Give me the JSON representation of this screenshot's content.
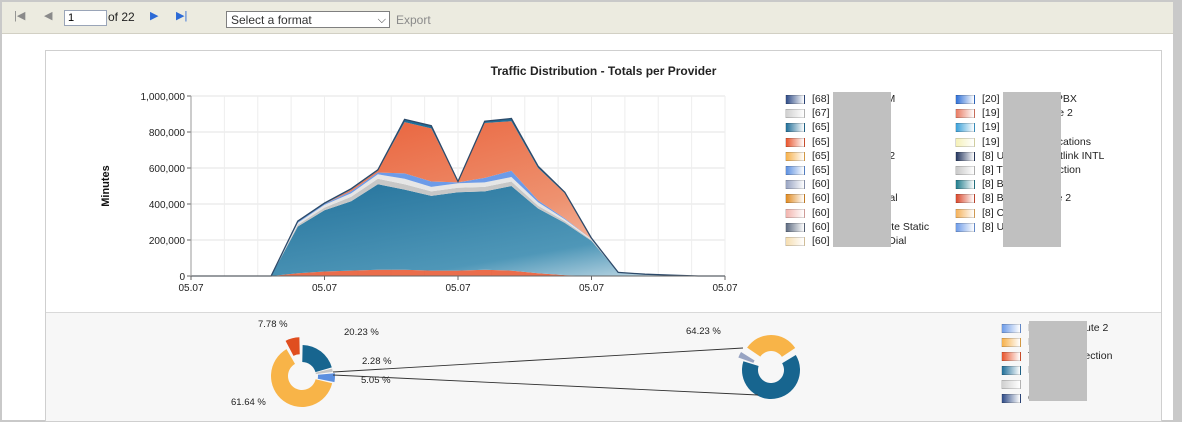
{
  "toolbar": {
    "first_icon": "first-page-icon",
    "prev_icon": "previous-page-icon",
    "page_value": "1",
    "of_label": "of 22",
    "next_icon": "next-page-icon",
    "last_icon": "last-page-icon",
    "format_placeholder": "Select a format",
    "export_label": "Export"
  },
  "chart": {
    "title": "Traffic Distribution - Totals per Provider"
  },
  "chart_data": [
    {
      "type": "area",
      "title": "Traffic Distribution - Totals per Provider",
      "ylabel": "Minutes",
      "xlabel": "",
      "x_tick_labels": [
        "05.07",
        "05.07",
        "05.07",
        "05.07",
        "05.07"
      ],
      "y_ticks": [
        "0",
        "200,000",
        "400,000",
        "600,000",
        "800,000",
        "1,000,000"
      ],
      "ylim": [
        0,
        1000000
      ],
      "grid": true,
      "stacked": true,
      "series": [
        {
          "values": [
            0,
            0,
            0,
            0,
            15000,
            25000,
            30000,
            35000,
            35000,
            30000,
            30000,
            35000,
            30000,
            15000,
            5000,
            0,
            0,
            0,
            0,
            0,
            0
          ]
        },
        {
          "values": [
            0,
            0,
            0,
            0,
            260000,
            340000,
            385000,
            475000,
            445000,
            415000,
            435000,
            435000,
            470000,
            360000,
            290000,
            195000,
            20000,
            10000,
            5000,
            0,
            0
          ]
        },
        {
          "values": [
            0,
            0,
            0,
            0,
            10000,
            15000,
            25000,
            30000,
            30000,
            25000,
            25000,
            25000,
            25000,
            15000,
            10000,
            5000,
            0,
            0,
            0,
            0,
            0
          ]
        },
        {
          "values": [
            0,
            0,
            0,
            0,
            10000,
            15000,
            20000,
            25000,
            30000,
            25000,
            25000,
            25000,
            25000,
            20000,
            10000,
            5000,
            0,
            0,
            0,
            0,
            0
          ]
        },
        {
          "values": [
            0,
            0,
            0,
            0,
            5000,
            5000,
            10000,
            10000,
            30000,
            30000,
            5000,
            25000,
            35000,
            10000,
            5000,
            0,
            0,
            0,
            0,
            0,
            0
          ]
        },
        {
          "values": [
            0,
            0,
            0,
            0,
            0,
            0,
            10000,
            10000,
            285000,
            295000,
            5000,
            305000,
            275000,
            180000,
            140000,
            5000,
            0,
            0,
            0,
            0,
            0
          ]
        },
        {
          "values": [
            0,
            0,
            0,
            0,
            5000,
            5000,
            5000,
            5000,
            15000,
            15000,
            0,
            10000,
            15000,
            10000,
            5000,
            0,
            0,
            0,
            0,
            0,
            0
          ]
        }
      ]
    },
    {
      "type": "pie",
      "slices": [
        {
          "label": "20.23 %",
          "value": 20.23
        },
        {
          "label": "2.28 %",
          "value": 2.28
        },
        {
          "label": "5.05 %",
          "value": 5.05
        },
        {
          "label": "61.64 %",
          "value": 61.64
        },
        {
          "label": "7.78 %",
          "value": 7.78
        }
      ]
    },
    {
      "type": "pie",
      "slices": [
        {
          "label": "64.23 %",
          "value": 64.23
        },
        {
          "label": "",
          "value": 4.0
        },
        {
          "label": "",
          "value": 31.77
        }
      ]
    }
  ],
  "legend_left": [
    {
      "text": "[68]",
      "tail": "VM",
      "color": "#2d4a86"
    },
    {
      "text": "[67]",
      "tail": "",
      "color": "#d0d0d0"
    },
    {
      "text": "[65]",
      "tail": "",
      "color": "#1f6e98"
    },
    {
      "text": "[65]",
      "tail": "",
      "color": "#e8542c"
    },
    {
      "text": "[65]",
      "tail": "P 2",
      "color": "#f6b04a"
    },
    {
      "text": "[65]",
      "tail": "P",
      "color": "#5b8fe0"
    },
    {
      "text": "[60]",
      "tail": "a",
      "color": "#97a3c2"
    },
    {
      "text": "[60]",
      "tail": "Dial",
      "color": "#e08a20"
    },
    {
      "text": "[60]",
      "tail": "R",
      "color": "#f2b4ae"
    },
    {
      "text": "[60]",
      "tail": "oute Static",
      "color": "#5c6a80"
    },
    {
      "text": "[60]",
      "tail": "o Dial",
      "color": "#f5ddb0"
    }
  ],
  "legend_right": [
    {
      "text": "[20]",
      "tail": "- PBX",
      "color": "#2e6fd6"
    },
    {
      "text": "[19]",
      "tail": "ute 2",
      "color": "#e87a62"
    },
    {
      "text": "[19]",
      "tail": "",
      "color": "#3aa0d8"
    },
    {
      "text": "[19]",
      "tail": "nications",
      "color": "#f5f1b8"
    },
    {
      "text": "[8] U",
      "tail": "htlink INTL",
      "color": "#23355e"
    },
    {
      "text": "[8] T",
      "tail": "ection",
      "color": "#c8c8c8"
    },
    {
      "text": "[8] B",
      "tail": "",
      "color": "#1f7c8c"
    },
    {
      "text": "[8] B",
      "tail": "te 2",
      "color": "#d9472b"
    },
    {
      "text": "[8] C",
      "tail": "",
      "color": "#f4b15a"
    },
    {
      "text": "[8] U",
      "tail": "e",
      "color": "#6d9be8"
    }
  ],
  "legend_bottom": [
    {
      "text": "E",
      "tail": "ute 2",
      "color": "#6d9be8"
    },
    {
      "text": "E",
      "tail": "",
      "color": "#f6b04a"
    },
    {
      "text": "T",
      "tail": "ection",
      "color": "#e8542c"
    },
    {
      "text": "E",
      "tail": "",
      "color": "#1f6e98"
    },
    {
      "text": "",
      "tail": "",
      "color": "#d0d0d0"
    },
    {
      "text": "C",
      "tail": "",
      "color": "#2d4a86"
    }
  ],
  "colors": {
    "toolbar_bg": "#ecebe0",
    "page_bg": "#c9c9c9"
  }
}
